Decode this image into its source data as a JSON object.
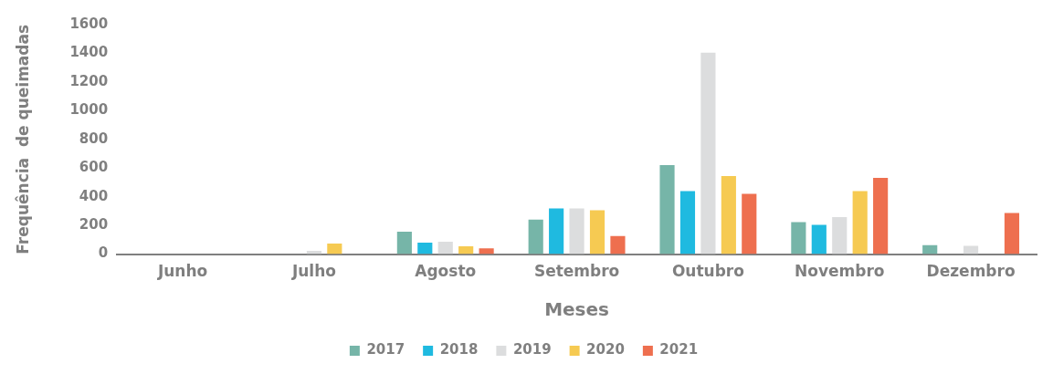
{
  "chart_data": {
    "type": "bar",
    "xlabel": "Meses",
    "ylabel": "Frequência  de queimadas",
    "categories": [
      "Junho",
      "Julho",
      "Agosto",
      "Setembro",
      "Outubro",
      "Novembro",
      "Dezembro"
    ],
    "series": [
      {
        "name": "2017",
        "color": "#76b5a8",
        "values": [
          0,
          0,
          156,
          240,
          620,
          224,
          63
        ]
      },
      {
        "name": "2018",
        "color": "#1fbae0",
        "values": [
          0,
          0,
          80,
          318,
          440,
          204,
          0
        ]
      },
      {
        "name": "2019",
        "color": "#dcddde",
        "values": [
          0,
          23,
          87,
          318,
          1405,
          258,
          58
        ]
      },
      {
        "name": "2020",
        "color": "#f6ca52",
        "values": [
          0,
          73,
          55,
          306,
          544,
          440,
          0
        ]
      },
      {
        "name": "2021",
        "color": "#ee6f4f",
        "values": [
          0,
          0,
          41,
          126,
          420,
          532,
          287
        ]
      }
    ],
    "ylim": [
      0,
      1600
    ],
    "yticks": [
      0,
      200,
      400,
      600,
      800,
      1000,
      1200,
      1400,
      1600
    ],
    "grid": false,
    "legend": "bottom"
  }
}
